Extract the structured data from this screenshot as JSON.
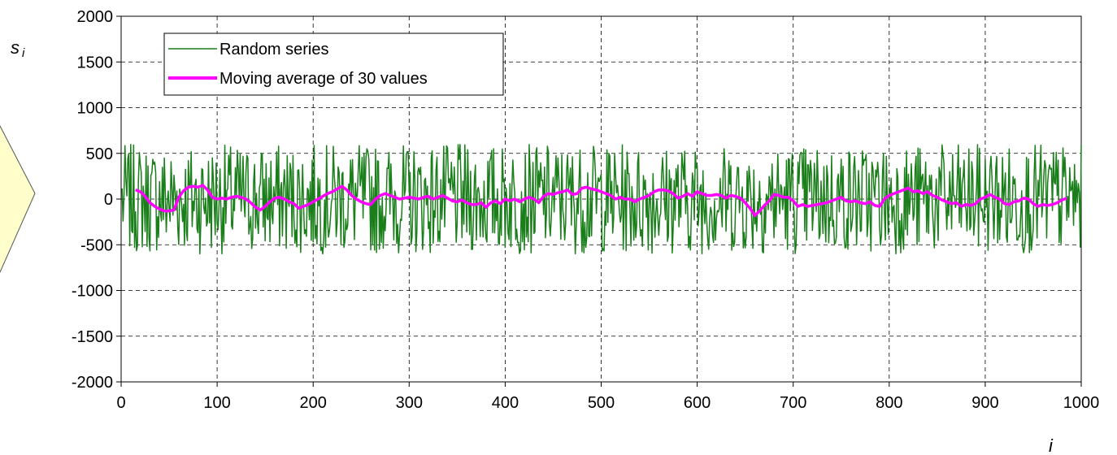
{
  "chart_data": {
    "type": "line",
    "xlabel": "i",
    "ylabel": {
      "main": "s",
      "sub": "i"
    },
    "xlim": [
      0,
      1000
    ],
    "ylim": [
      -2000,
      2000
    ],
    "x_ticks": [
      0,
      100,
      200,
      300,
      400,
      500,
      600,
      700,
      800,
      900,
      1000
    ],
    "y_ticks": [
      2000,
      1500,
      1000,
      500,
      0,
      -500,
      -1000,
      -1500,
      -2000
    ],
    "grid": true,
    "legend_position": "top-left",
    "series": [
      {
        "name": "Random series",
        "color": "#1a7f1a",
        "line_width": "thin",
        "n_points": 1000,
        "value_range": [
          -600,
          600
        ]
      },
      {
        "name": "Moving average of 30 values",
        "color": "#ff00ff",
        "line_width": "thick",
        "x": [
          15,
          20,
          25,
          30,
          35,
          40,
          45,
          50,
          55,
          60,
          65,
          70,
          75,
          80,
          85,
          90,
          95,
          100,
          105,
          110,
          115,
          120,
          125,
          130,
          135,
          140,
          145,
          150,
          155,
          160,
          165,
          170,
          175,
          180,
          185,
          190,
          195,
          200,
          205,
          210,
          215,
          220,
          225,
          230,
          235,
          240,
          245,
          250,
          255,
          260,
          265,
          270,
          275,
          280,
          285,
          290,
          295,
          300,
          305,
          310,
          315,
          320,
          325,
          330,
          335,
          340,
          345,
          350,
          355,
          360,
          365,
          370,
          375,
          380,
          385,
          390,
          395,
          400,
          405,
          410,
          415,
          420,
          425,
          430,
          435,
          440,
          445,
          450,
          455,
          460,
          465,
          470,
          475,
          480,
          485,
          490,
          495,
          500,
          505,
          510,
          515,
          520,
          525,
          530,
          535,
          540,
          545,
          550,
          555,
          560,
          565,
          570,
          575,
          580,
          585,
          590,
          595,
          600,
          605,
          610,
          615,
          620,
          625,
          630,
          635,
          640,
          645,
          650,
          655,
          660,
          665,
          670,
          675,
          680,
          685,
          690,
          695,
          700,
          705,
          710,
          715,
          720,
          725,
          730,
          735,
          740,
          745,
          750,
          755,
          760,
          765,
          770,
          775,
          780,
          785,
          790,
          795,
          800,
          805,
          810,
          815,
          820,
          825,
          830,
          835,
          840,
          845,
          850,
          855,
          860,
          865,
          870,
          875,
          880,
          885,
          890,
          895,
          900,
          905,
          910,
          915,
          920,
          925,
          930,
          935,
          940,
          945,
          950,
          955,
          960,
          965,
          970,
          975,
          980,
          985
        ],
        "values": [
          100,
          80,
          30,
          -40,
          -80,
          -110,
          -130,
          -130,
          -120,
          20,
          90,
          130,
          140,
          130,
          150,
          100,
          20,
          0,
          10,
          0,
          20,
          30,
          20,
          0,
          -40,
          -90,
          -120,
          -80,
          -30,
          10,
          20,
          0,
          -30,
          -50,
          -100,
          -80,
          -60,
          -30,
          0,
          30,
          60,
          80,
          110,
          140,
          100,
          40,
          0,
          -30,
          -50,
          -60,
          0,
          40,
          60,
          40,
          20,
          0,
          10,
          20,
          10,
          0,
          20,
          30,
          0,
          20,
          40,
          10,
          -20,
          -30,
          -10,
          -40,
          -60,
          -60,
          -40,
          -90,
          -40,
          -20,
          -50,
          0,
          -20,
          0,
          -30,
          0,
          20,
          0,
          -40,
          30,
          60,
          50,
          70,
          80,
          100,
          50,
          60,
          120,
          130,
          110,
          100,
          80,
          60,
          40,
          0,
          20,
          0,
          0,
          -30,
          0,
          20,
          40,
          80,
          100,
          100,
          90,
          60,
          10,
          30,
          60,
          30,
          80,
          60,
          40,
          40,
          50,
          40,
          10,
          40,
          30,
          10,
          -40,
          -100,
          -180,
          -130,
          -70,
          -20,
          50,
          40,
          20,
          20,
          -20,
          -80,
          -60,
          -80,
          -70,
          -60,
          -50,
          -40,
          -20,
          0,
          20,
          -20,
          -30,
          -20,
          -40,
          -50,
          -30,
          -70,
          -80,
          0,
          40,
          60,
          80,
          100,
          120,
          80,
          90,
          60,
          80,
          40,
          20,
          -10,
          -30,
          -50,
          -40,
          -80,
          -60,
          -70,
          -50,
          0,
          20,
          50,
          20,
          0,
          -50,
          -60,
          -30,
          -20,
          10,
          0,
          -50,
          -80,
          -60,
          -70,
          -60,
          -40,
          -10,
          10
        ]
      }
    ]
  },
  "decor": {
    "shape_fill": "#ffffcc",
    "shape_stroke": "#555555"
  }
}
